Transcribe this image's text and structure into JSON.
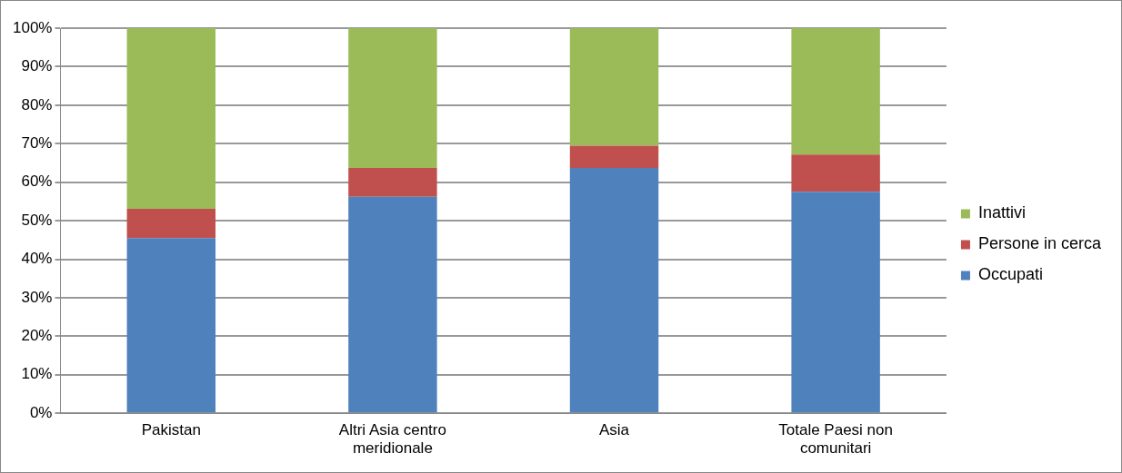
{
  "chart_data": {
    "type": "bar",
    "stacked": true,
    "categories": [
      "Pakistan",
      "Altri Asia centro meridionale",
      "Asia",
      "Totale Paesi non comunitari"
    ],
    "series": [
      {
        "name": "Occupati",
        "color": "#4f81bd",
        "values": [
          45.5,
          56.2,
          63.7,
          57.5
        ]
      },
      {
        "name": "Persone in cerca",
        "color": "#c0504d",
        "values": [
          7.6,
          7.5,
          5.8,
          9.7
        ]
      },
      {
        "name": "Inattivi",
        "color": "#9bbb59",
        "values": [
          46.9,
          36.3,
          30.5,
          32.8
        ]
      }
    ],
    "ylim": [
      0,
      100
    ],
    "yticks": [
      {
        "value": 0,
        "label": "0%"
      },
      {
        "value": 10,
        "label": "10%"
      },
      {
        "value": 20,
        "label": "20%"
      },
      {
        "value": 30,
        "label": "30%"
      },
      {
        "value": 40,
        "label": "40%"
      },
      {
        "value": 50,
        "label": "50%"
      },
      {
        "value": 60,
        "label": "60%"
      },
      {
        "value": 70,
        "label": "70%"
      },
      {
        "value": 80,
        "label": "80%"
      },
      {
        "value": 90,
        "label": "90%"
      },
      {
        "value": 100,
        "label": "100%"
      }
    ],
    "grid": "y",
    "legend": "right"
  }
}
